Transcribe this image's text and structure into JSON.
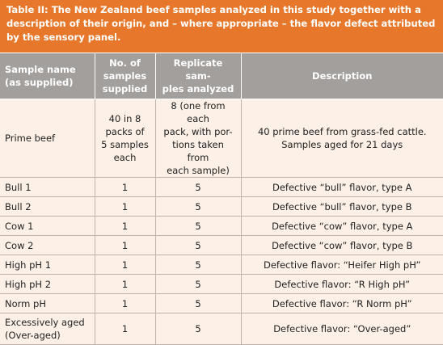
{
  "title": "Table II: The New Zealand beef samples analyzed in this study together with a\ndescription of their origin, and – where appropriate – the flavor defect attributed\nby the sensory panel.",
  "table": {
    "header": [
      "Sample name\n(as supplied)",
      "No. of\nsamples\nsupplied",
      "Replicate sam-\nples analyzed",
      "Description"
    ],
    "rows": [
      [
        "Prime beef",
        "40 in 8\npacks of\n5 samples\neach",
        "8 (one from each\npack, with por-\ntions taken from\neach sample)",
        "40 prime beef from grass-fed cattle.\nSamples aged for 21 days"
      ],
      [
        "Bull 1",
        1,
        5,
        "Defective “bull” flavor, type A"
      ],
      [
        "Bull 2",
        1,
        5,
        "Defective “bull” flavor, type B"
      ],
      [
        "Cow 1",
        1,
        5,
        "Defective “cow” flavor, type A"
      ],
      [
        "Cow 2",
        1,
        5,
        "Defective “cow” flavor, type B"
      ],
      [
        "High pH 1",
        1,
        5,
        "Defective flavor: “Heifer High pH”"
      ],
      [
        "High pH 2",
        1,
        5,
        "Defective flavor: “R High pH”"
      ],
      [
        "Norm pH",
        1,
        5,
        "Defective flavor: “R Norm pH”"
      ],
      [
        "Excessively aged\n(Over-aged)",
        1,
        5,
        "Defective flavor: “Over-aged”"
      ]
    ]
  }
}
